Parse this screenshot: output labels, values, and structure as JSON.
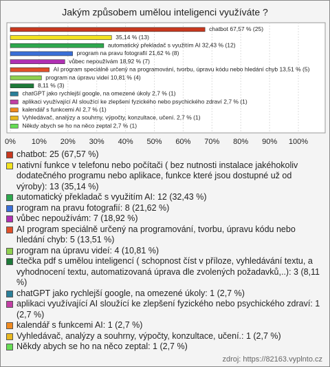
{
  "chart_data": {
    "type": "barh",
    "title": "Jakým způsobem umělou inteligenci využíváte ?",
    "categories": [
      "chatbot",
      "nativní funkce v telefonu nebo počítači",
      "automatický překladač s využitím AI",
      "program na pravu fotografií",
      "vůbec nepoužívám",
      "AI program speciálně určený na programování, tvorbu, úpravu kódu nebo hledání chyb",
      "program na úpravu videí",
      "čtečka pdf s umělou inteligencí",
      "chatGPT jako rychlejší google, na omezené úkoly",
      "aplikaci využívající AI sloužící ke zlepšení fyzického nebo psychického zdraví",
      "kalendář s funkcemi AI",
      "Vyhledávač, analýzy a souhrny, výpočty, konzultace, učení.",
      "Někdy abych se ho na něco zeptal"
    ],
    "values": [
      67.57,
      35.14,
      32.43,
      21.62,
      18.92,
      13.51,
      10.81,
      8.11,
      2.7,
      2.7,
      2.7,
      2.7,
      2.7
    ],
    "value_labels": [
      "chatbot 67,57 % (25)",
      "35,14 % (13)",
      "automatický překladač s využitím AI 32,43 % (12)",
      "program na pravu fotografií 21,62 % (8)",
      "vůbec nepoužívám 18,92 % (7)",
      "AI program speciálně určený na programování, tvorbu, úpravu kódu nebo hledání chyb 13,51 % (5)",
      "program na úpravu videí 10,81 % (4)",
      "8,11 % (3)",
      "chatGPT jako rychlejší google, na omezené úkoly 2,7 % (1)",
      "aplikaci využívající AI sloužící ke zlepšení fyzického nebo psychického zdraví 2,7 % (1)",
      "kalendář s funkcemi AI 2,7 % (1)",
      "Vyhledávač, analýzy a souhrny, výpočty, konzultace, učení. 2,7 % (1)",
      "Někdy abych se ho na něco zeptal 2,7 % (1)"
    ],
    "colors": [
      "#c8381e",
      "#f2e21e",
      "#2ea84e",
      "#3a6fd8",
      "#b02fb3",
      "#e0502a",
      "#8fd14f",
      "#1e7a3a",
      "#2a7f99",
      "#c23fa5",
      "#f08a20",
      "#e8b820",
      "#66dd55"
    ],
    "legend_labels": [
      "chatbot: 25 (67,57 %)",
      "nativní funkce v telefonu nebo počítači ( bez nutnosti instalace jakéhokoliv dodatečného programu nebo aplikace, funkce které jsou dostupné už od výroby): 13 (35,14 %)",
      "automatický překladač s využitím AI: 12 (32,43 %)",
      "program na pravu fotografií: 8 (21,62 %)",
      "vůbec nepoužívám: 7 (18,92 %)",
      "AI program speciálně určený na programování, tvorbu, úpravu kódu nebo hledání chyb: 5 (13,51 %)",
      "program na úpravu videí: 4 (10,81 %)",
      "čtečka pdf s umělou inteligencí ( schopnost číst v příloze, vyhledávání textu, a vyhodnocení textu, automatizovaná úprava dle zvolených požadavků,..): 3 (8,11 %)",
      "chatGPT jako rychlejší google, na omezené úkoly: 1 (2,7 %)",
      "aplikaci využívající AI sloužící ke zlepšení fyzického nebo psychického zdraví: 1 (2,7 %)",
      "kalendář s funkcemi AI: 1 (2,7 %)",
      "Vyhledávač, analýzy a souhrny, výpočty, konzultace, učení.: 1 (2,7 %)",
      "Někdy abych se ho na něco zeptal: 1 (2,7 %)"
    ],
    "xlim": [
      0,
      100
    ],
    "xticks": [
      {
        "value": 0,
        "label": "0%"
      },
      {
        "value": 10,
        "label": "10%"
      },
      {
        "value": 20,
        "label": "20%"
      },
      {
        "value": 30,
        "label": "30%"
      },
      {
        "value": 40,
        "label": "40%"
      },
      {
        "value": 50,
        "label": "50%"
      },
      {
        "value": 60,
        "label": "60%"
      },
      {
        "value": 70,
        "label": "70%"
      },
      {
        "value": 80,
        "label": "80%"
      },
      {
        "value": 90,
        "label": "90%"
      },
      {
        "value": 100,
        "label": "100%"
      }
    ],
    "grid": true,
    "source": "zdroj: https://82163.vyplnto.cz"
  }
}
